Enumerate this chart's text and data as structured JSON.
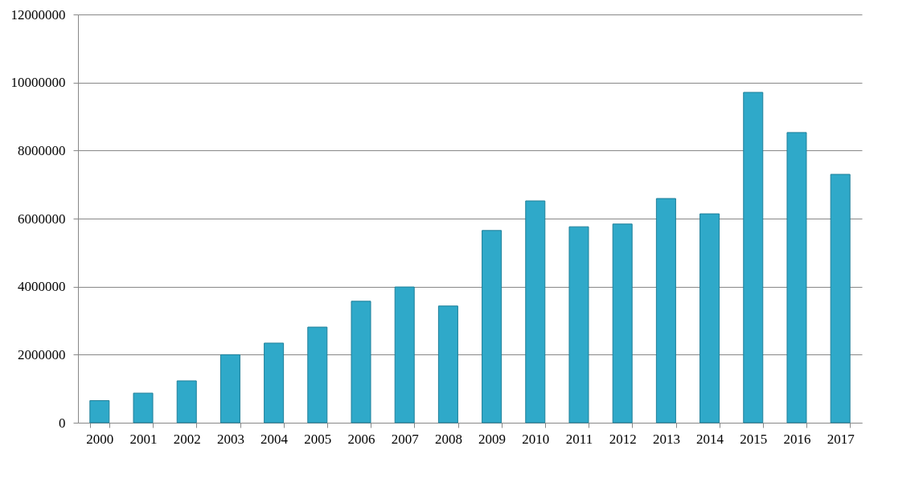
{
  "chart_data": {
    "type": "bar",
    "categories": [
      "2000",
      "2001",
      "2002",
      "2003",
      "2004",
      "2005",
      "2006",
      "2007",
      "2008",
      "2009",
      "2010",
      "2011",
      "2012",
      "2013",
      "2014",
      "2015",
      "2016",
      "2017"
    ],
    "values": [
      650000,
      870000,
      1230000,
      2000000,
      2340000,
      2810000,
      3570000,
      3990000,
      3430000,
      5650000,
      6520000,
      5760000,
      5840000,
      6590000,
      6140000,
      9710000,
      8530000,
      7300000
    ],
    "color": "#2fa9c9",
    "ylim": [
      0,
      12000000
    ],
    "yticks": [
      0,
      2000000,
      4000000,
      6000000,
      8000000,
      10000000,
      12000000
    ],
    "grid": "y"
  }
}
